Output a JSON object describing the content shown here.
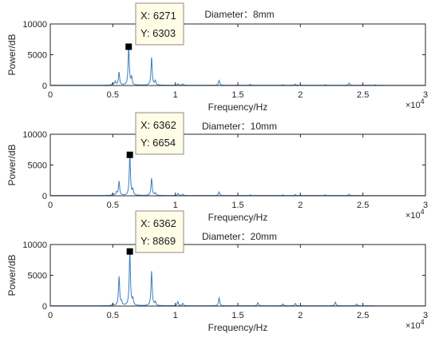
{
  "figure": {
    "panels": [
      {
        "title": "Diameter：8mm",
        "datatip": {
          "x_label": "X: 6271",
          "y_label": "Y: 6303"
        }
      },
      {
        "title": "Diameter：10mm",
        "datatip": {
          "x_label": "X: 6362",
          "y_label": "Y: 6654"
        }
      },
      {
        "title": "Diameter：20mm",
        "datatip": {
          "x_label": "X: 6362",
          "y_label": "Y: 8869"
        }
      }
    ],
    "colors": {
      "line": "#3a7fc0",
      "axes": "#262626",
      "datatip_bg": "#fffde6",
      "datatip_border": "#8c8c8c",
      "marker": "#000000"
    }
  },
  "chart_data": [
    {
      "type": "line",
      "title": "Diameter：8mm",
      "xlabel": "Frequency/Hz",
      "ylabel": "Power/dB",
      "x_multiplier": "×10^4",
      "xlim": [
        0,
        30000
      ],
      "ylim": [
        0,
        10000
      ],
      "xticks": [
        0,
        5000,
        10000,
        15000,
        20000,
        25000,
        30000
      ],
      "xtick_labels": [
        "0",
        "0.5",
        "1",
        "1.5",
        "2",
        "2.5",
        "3"
      ],
      "yticks": [
        0,
        5000,
        10000
      ],
      "ytick_labels": [
        "0",
        "5000",
        "10000"
      ],
      "grid": false,
      "peaks": [
        {
          "x": 5000,
          "y": 350
        },
        {
          "x": 5200,
          "y": 600
        },
        {
          "x": 5500,
          "y": 2100
        },
        {
          "x": 6271,
          "y": 6303
        },
        {
          "x": 6500,
          "y": 1200
        },
        {
          "x": 8100,
          "y": 4500
        },
        {
          "x": 8400,
          "y": 700
        },
        {
          "x": 10200,
          "y": 250
        },
        {
          "x": 10600,
          "y": 200
        },
        {
          "x": 13500,
          "y": 800
        },
        {
          "x": 16000,
          "y": 150
        },
        {
          "x": 18600,
          "y": 100
        },
        {
          "x": 19600,
          "y": 200
        },
        {
          "x": 22000,
          "y": 100
        },
        {
          "x": 23900,
          "y": 350
        },
        {
          "x": 26000,
          "y": 80
        }
      ],
      "datatip": {
        "x": 6271,
        "y": 6303
      }
    },
    {
      "type": "line",
      "title": "Diameter：10mm",
      "xlabel": "Frequency/Hz",
      "ylabel": "Power/dB",
      "x_multiplier": "×10^4",
      "xlim": [
        0,
        30000
      ],
      "ylim": [
        0,
        10000
      ],
      "xticks": [
        0,
        5000,
        10000,
        15000,
        20000,
        25000,
        30000
      ],
      "xtick_labels": [
        "0",
        "0.5",
        "1",
        "1.5",
        "2",
        "2.5",
        "3"
      ],
      "yticks": [
        0,
        5000,
        10000
      ],
      "ytick_labels": [
        "0",
        "5000",
        "10000"
      ],
      "grid": false,
      "peaks": [
        {
          "x": 5000,
          "y": 300
        },
        {
          "x": 5300,
          "y": 500
        },
        {
          "x": 5500,
          "y": 2300
        },
        {
          "x": 6362,
          "y": 6654
        },
        {
          "x": 6600,
          "y": 900
        },
        {
          "x": 8100,
          "y": 2800
        },
        {
          "x": 8400,
          "y": 400
        },
        {
          "x": 10200,
          "y": 350
        },
        {
          "x": 10600,
          "y": 200
        },
        {
          "x": 13500,
          "y": 600
        },
        {
          "x": 16000,
          "y": 100
        },
        {
          "x": 18600,
          "y": 80
        },
        {
          "x": 19600,
          "y": 150
        },
        {
          "x": 22000,
          "y": 100
        },
        {
          "x": 23900,
          "y": 200
        }
      ],
      "datatip": {
        "x": 6362,
        "y": 6654
      }
    },
    {
      "type": "line",
      "title": "Diameter：20mm",
      "xlabel": "Frequency/Hz",
      "ylabel": "Power/dB",
      "x_multiplier": "×10^4",
      "xlim": [
        0,
        30000
      ],
      "ylim": [
        0,
        10000
      ],
      "xticks": [
        0,
        5000,
        10000,
        15000,
        20000,
        25000,
        30000
      ],
      "xtick_labels": [
        "0",
        "0.5",
        "1",
        "1.5",
        "2",
        "2.5",
        "3"
      ],
      "yticks": [
        0,
        5000,
        10000
      ],
      "ytick_labels": [
        "0",
        "5000",
        "10000"
      ],
      "grid": false,
      "peaks": [
        {
          "x": 5000,
          "y": 300
        },
        {
          "x": 5500,
          "y": 4700
        },
        {
          "x": 5700,
          "y": 600
        },
        {
          "x": 6362,
          "y": 8869
        },
        {
          "x": 6600,
          "y": 1000
        },
        {
          "x": 8100,
          "y": 5600
        },
        {
          "x": 8400,
          "y": 600
        },
        {
          "x": 10200,
          "y": 700
        },
        {
          "x": 10600,
          "y": 400
        },
        {
          "x": 13500,
          "y": 1300
        },
        {
          "x": 16600,
          "y": 500
        },
        {
          "x": 18600,
          "y": 300
        },
        {
          "x": 19600,
          "y": 400
        },
        {
          "x": 22800,
          "y": 600
        },
        {
          "x": 24500,
          "y": 300
        }
      ],
      "datatip": {
        "x": 6362,
        "y": 8869
      }
    }
  ]
}
